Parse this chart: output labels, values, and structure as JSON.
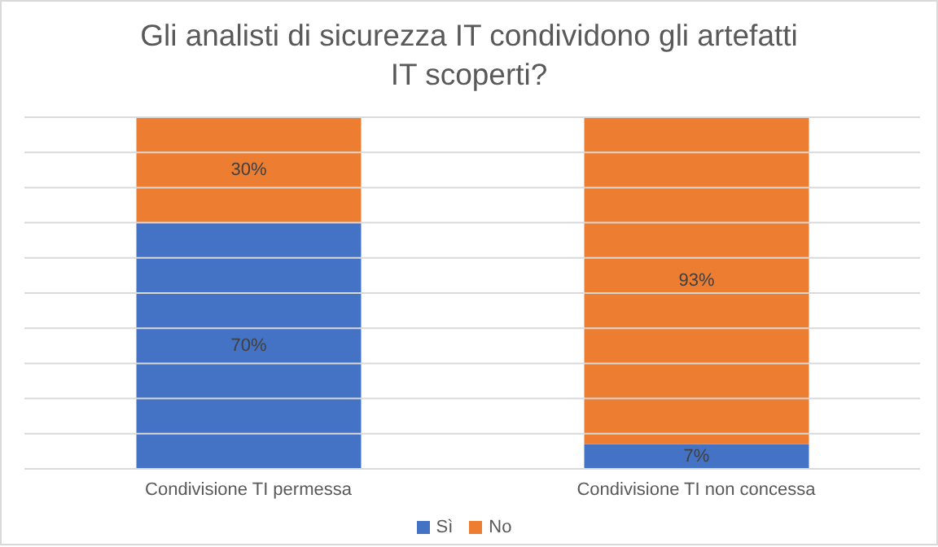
{
  "chart_data": {
    "type": "bar",
    "title": "Gli analisti di sicurezza IT condividono gli artefatti IT scoperti?",
    "categories": [
      "Condivisione TI permessa",
      "Condivisione TI non concessa"
    ],
    "stacked": true,
    "ylim": [
      0,
      100
    ],
    "yticks": [
      {
        "value": 0,
        "label": null
      },
      {
        "value": 10,
        "label": null
      },
      {
        "value": 20,
        "label": null
      },
      {
        "value": 30,
        "label": null
      },
      {
        "value": 40,
        "label": null
      },
      {
        "value": 50,
        "label": null
      },
      {
        "value": 60,
        "label": null
      },
      {
        "value": 70,
        "label": null
      },
      {
        "value": 80,
        "label": null
      },
      {
        "value": 90,
        "label": null
      },
      {
        "value": 100,
        "label": null
      }
    ],
    "tick_labels": "x",
    "grid": "y",
    "legend": "bottom",
    "series": [
      {
        "name": "Sì",
        "color": "#4472c4",
        "values": [
          70,
          7
        ],
        "value_labels": [
          "70%",
          "7%"
        ]
      },
      {
        "name": "No",
        "color": "#ed7d31",
        "values": [
          30,
          93
        ],
        "value_labels": [
          "30%",
          "93%"
        ]
      }
    ]
  }
}
